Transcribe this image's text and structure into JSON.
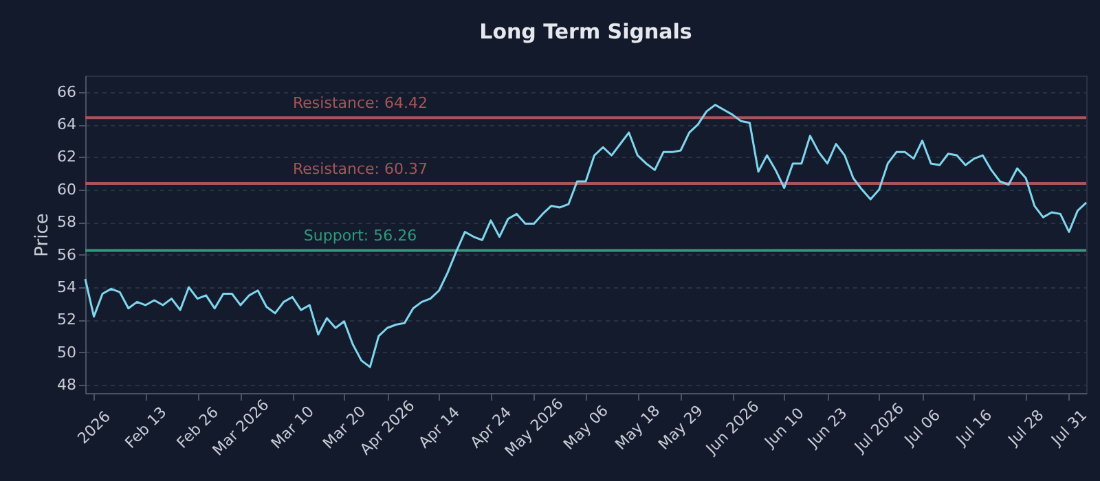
{
  "chart_data": {
    "type": "line",
    "title": "Long Term Signals",
    "ylabel": "Price",
    "categories": [
      null,
      "2026",
      null,
      null,
      null,
      null,
      null,
      "Feb 13",
      null,
      null,
      null,
      null,
      null,
      "Feb 26",
      null,
      null,
      null,
      null,
      "Mar 2026",
      null,
      null,
      null,
      null,
      null,
      "Mar 10",
      null,
      null,
      null,
      null,
      null,
      "Mar 20",
      null,
      null,
      null,
      null,
      "Apr 2026",
      null,
      null,
      null,
      null,
      null,
      "Apr 14",
      null,
      null,
      null,
      null,
      null,
      "Apr 24",
      null,
      null,
      null,
      null,
      "May 2026",
      null,
      null,
      null,
      null,
      null,
      "May 06",
      null,
      null,
      null,
      null,
      null,
      "May 18",
      null,
      null,
      null,
      null,
      "May 29",
      null,
      null,
      null,
      null,
      null,
      "Jun 2026",
      null,
      null,
      null,
      null,
      null,
      "Jun 10",
      null,
      null,
      null,
      null,
      "Jun 23",
      null,
      null,
      null,
      null,
      null,
      "Jul 2026",
      null,
      null,
      null,
      null,
      "Jul 06",
      null,
      null,
      null,
      null,
      null,
      "Jul 16",
      null,
      null,
      null,
      null,
      null,
      "Jul 28",
      null,
      null,
      null,
      null,
      "Jul 31",
      null,
      null
    ],
    "series": [
      {
        "color": "#7fd6ee",
        "values": [
          54.5,
          52.2,
          53.6,
          53.9,
          53.7,
          52.7,
          53.1,
          52.9,
          53.2,
          52.9,
          53.3,
          52.6,
          54.0,
          53.3,
          53.5,
          52.7,
          53.6,
          53.6,
          52.9,
          53.5,
          53.8,
          52.8,
          52.4,
          53.1,
          53.4,
          52.6,
          52.9,
          51.1,
          52.1,
          51.5,
          51.9,
          50.5,
          49.5,
          49.1,
          51.0,
          51.5,
          51.7,
          51.8,
          52.7,
          53.1,
          53.3,
          53.8,
          54.9,
          56.2,
          57.4,
          57.1,
          56.9,
          58.1,
          57.1,
          58.2,
          58.5,
          57.9,
          57.9,
          58.5,
          59.0,
          58.9,
          59.1,
          60.5,
          60.5,
          62.1,
          62.6,
          62.1,
          62.8,
          63.5,
          62.1,
          61.6,
          61.2,
          62.3,
          62.3,
          62.4,
          63.5,
          64.0,
          64.8,
          65.2,
          64.9,
          64.6,
          64.2,
          64.1,
          61.1,
          62.1,
          61.2,
          60.1,
          61.6,
          61.6,
          63.3,
          62.3,
          61.6,
          62.8,
          62.1,
          60.7,
          60.0,
          59.4,
          60.0,
          61.6,
          62.3,
          62.3,
          61.9,
          63.0,
          61.6,
          61.5,
          62.2,
          62.1,
          61.5,
          61.9,
          62.1,
          61.2,
          60.5,
          60.3,
          61.3,
          60.7,
          59.0,
          58.3,
          58.6,
          58.5,
          57.4,
          58.7,
          59.2
        ]
      }
    ],
    "ylim": [
      47.5,
      67
    ],
    "yticks": [
      48,
      50,
      52,
      54,
      56,
      58,
      60,
      62,
      64,
      66
    ],
    "grid": "y",
    "ref_lines": [
      {
        "axis": "y",
        "value": 64.42,
        "label": "Resistance: 64.42",
        "color": "#a65558"
      },
      {
        "axis": "y",
        "value": 60.37,
        "label": "Resistance: 60.37",
        "color": "#a65558"
      },
      {
        "axis": "y",
        "value": 56.26,
        "label": "Support: 56.26",
        "color": "#2f9a7e"
      }
    ]
  }
}
